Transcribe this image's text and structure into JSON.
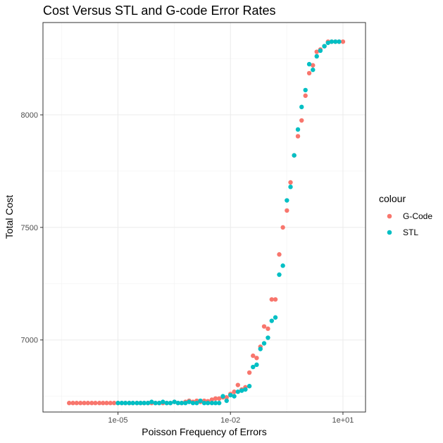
{
  "chart_data": {
    "type": "scatter",
    "title": "Cost Versus STL and G-code Error Rates",
    "xlabel": "Poisson Frequency of Errors",
    "ylabel": "Total Cost",
    "x_scale": "log10",
    "x_ticks": [
      {
        "value": 1e-05,
        "label": "1e-05"
      },
      {
        "value": 0.01,
        "label": "1e-02"
      },
      {
        "value": 10,
        "label": "1e+01"
      }
    ],
    "y_ticks": [
      {
        "value": 7000,
        "label": "7000"
      },
      {
        "value": 7500,
        "label": "7500"
      },
      {
        "value": 8000,
        "label": "8000"
      }
    ],
    "xlim": [
      1e-07,
      40
    ],
    "ylim": [
      6680,
      8410
    ],
    "grid": true,
    "legend": {
      "title": "colour",
      "position": "right",
      "entries": [
        {
          "name": "G-Code",
          "color": "#F8766D"
        },
        {
          "name": "STL",
          "color": "#00BFC4"
        }
      ]
    },
    "series": [
      {
        "name": "G-Code",
        "color": "#F8766D",
        "x": [
          5e-07,
          6.3e-07,
          7.9e-07,
          1e-06,
          1.26e-06,
          1.58e-06,
          2e-06,
          2.5e-06,
          3.2e-06,
          4e-06,
          5e-06,
          6.3e-06,
          7.9e-06,
          1e-05,
          1.26e-05,
          1.58e-05,
          2e-05,
          2.5e-05,
          3.2e-05,
          4e-05,
          5e-05,
          6.3e-05,
          7.9e-05,
          0.0001,
          0.000126,
          0.000158,
          0.0002,
          0.00025,
          0.00032,
          0.0004,
          0.0005,
          0.00063,
          0.00079,
          0.001,
          0.00126,
          0.00158,
          0.002,
          0.0025,
          0.0032,
          0.004,
          0.005,
          0.0063,
          0.0079,
          0.01,
          0.0126,
          0.0158,
          0.02,
          0.025,
          0.032,
          0.04,
          0.05,
          0.063,
          0.079,
          0.1,
          0.126,
          0.158,
          0.2,
          0.25,
          0.32,
          0.4,
          0.5,
          0.63,
          0.79,
          1.0,
          1.26,
          1.58,
          2.0,
          2.5,
          3.2,
          4.0,
          5.0,
          6.3,
          7.9,
          10.0
        ],
        "y": [
          6720,
          6720,
          6720,
          6720,
          6720,
          6720,
          6720,
          6720,
          6720,
          6720,
          6720,
          6720,
          6720,
          6720,
          6720,
          6720,
          6720,
          6720,
          6720,
          6720,
          6720,
          6720,
          6720,
          6720,
          6720,
          6720,
          6720,
          6720,
          6725,
          6720,
          6720,
          6725,
          6730,
          6725,
          6730,
          6725,
          6730,
          6728,
          6735,
          6740,
          6740,
          6745,
          6745,
          6760,
          6770,
          6800,
          6780,
          6790,
          6855,
          6930,
          6920,
          6970,
          7060,
          7050,
          7180,
          7180,
          7380,
          7500,
          7575,
          7700,
          7820,
          7905,
          7975,
          8085,
          8185,
          8220,
          8280,
          8290,
          8305,
          8325,
          8325,
          8325,
          8325,
          8325
        ]
      },
      {
        "name": "STL",
        "color": "#00BFC4",
        "x": [
          1e-05,
          1.26e-05,
          1.58e-05,
          2e-05,
          2.5e-05,
          3.2e-05,
          4e-05,
          5e-05,
          6.3e-05,
          7.9e-05,
          0.0001,
          0.000126,
          0.000158,
          0.0002,
          0.00025,
          0.00032,
          0.0004,
          0.0005,
          0.00063,
          0.00079,
          0.001,
          0.00126,
          0.00158,
          0.002,
          0.0025,
          0.0032,
          0.004,
          0.005,
          0.0063,
          0.0079,
          0.01,
          0.0126,
          0.0158,
          0.02,
          0.025,
          0.032,
          0.04,
          0.05,
          0.063,
          0.079,
          0.1,
          0.126,
          0.158,
          0.2,
          0.25,
          0.32,
          0.4,
          0.5,
          0.63,
          0.79,
          1.0,
          1.26,
          1.58,
          2.0,
          2.5,
          3.2,
          4.0,
          5.0,
          6.3,
          7.9
        ],
        "y": [
          6720,
          6720,
          6720,
          6720,
          6720,
          6720,
          6720,
          6720,
          6720,
          6725,
          6720,
          6720,
          6725,
          6720,
          6720,
          6725,
          6720,
          6720,
          6720,
          6725,
          6720,
          6720,
          6730,
          6720,
          6720,
          6720,
          6720,
          6720,
          6750,
          6730,
          6755,
          6750,
          6770,
          6775,
          6780,
          6795,
          6880,
          6890,
          6960,
          6985,
          7010,
          7085,
          7100,
          7290,
          7330,
          7620,
          7680,
          7820,
          7935,
          8035,
          8110,
          8225,
          8200,
          8260,
          8285,
          8305,
          8320,
          8325,
          8325,
          8325
        ]
      }
    ]
  }
}
